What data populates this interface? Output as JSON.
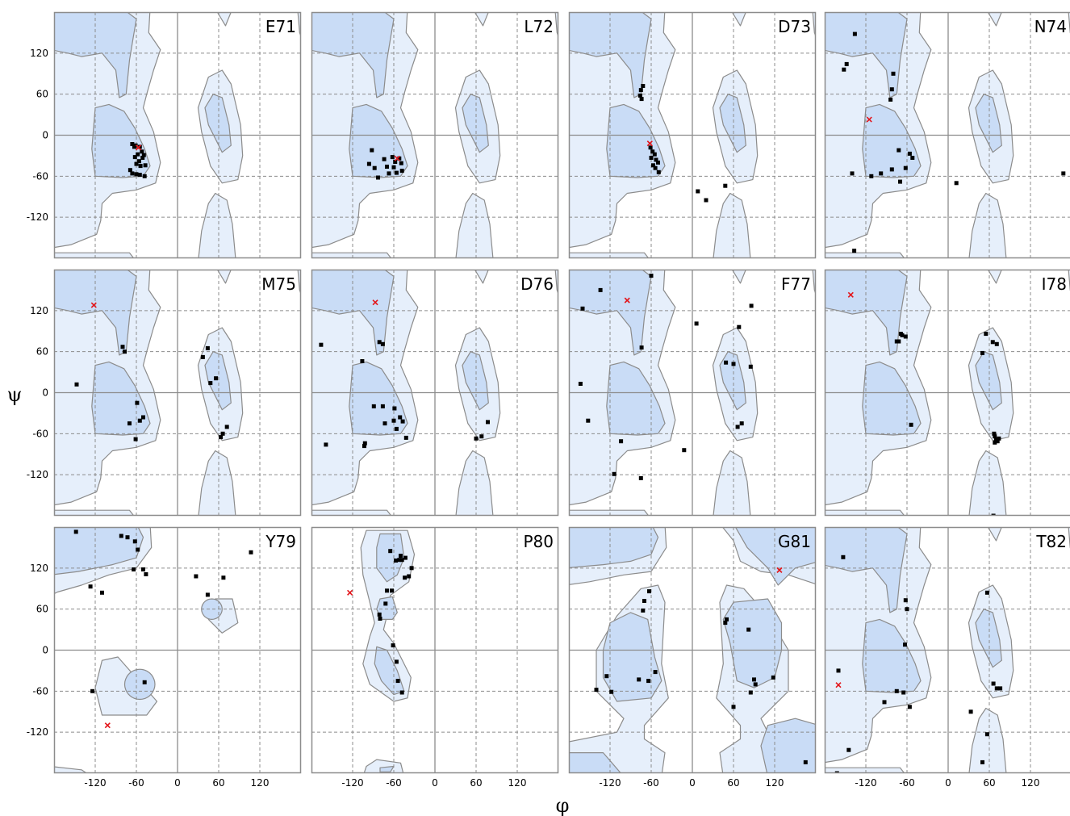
{
  "chart_data": {
    "type": "scatter",
    "xlabel": "φ",
    "ylabel": "ψ",
    "xlim": [
      -180,
      180
    ],
    "ylim": [
      -180,
      180
    ],
    "xticks": [
      -120,
      -60,
      0,
      60,
      120
    ],
    "yticks": [
      120,
      60,
      0,
      -60,
      -120
    ],
    "grid": true,
    "colors": {
      "favored_region": "#c9dcf6",
      "allowed_region": "#e6effb",
      "region_border": "#8c8c8c",
      "point": "#000000",
      "highlight": "#e3161b",
      "frame": "#8c8c8c",
      "grid": "#8c8c8c"
    },
    "panels": [
      {
        "label": "E71",
        "highlight": [
          -57,
          -18
        ],
        "points": [
          [
            -66,
            -13
          ],
          [
            -63,
            -17
          ],
          [
            -61,
            -15
          ],
          [
            -55,
            -17
          ],
          [
            -52,
            -24
          ],
          [
            -58,
            -28
          ],
          [
            -49,
            -29
          ],
          [
            -62,
            -32
          ],
          [
            -51,
            -33
          ],
          [
            -56,
            -38
          ],
          [
            -60,
            -42
          ],
          [
            -54,
            -45
          ],
          [
            -47,
            -44
          ],
          [
            -69,
            -51
          ],
          [
            -66,
            -56
          ],
          [
            -60,
            -57
          ],
          [
            -55,
            -58
          ],
          [
            -48,
            -60
          ]
        ]
      },
      {
        "label": "L72",
        "highlight": [
          -55,
          -34
        ],
        "points": [
          [
            -92,
            -22
          ],
          [
            -96,
            -42
          ],
          [
            -88,
            -48
          ],
          [
            -83,
            -62
          ],
          [
            -74,
            -35
          ],
          [
            -70,
            -46
          ],
          [
            -67,
            -56
          ],
          [
            -62,
            -32
          ],
          [
            -60,
            -47
          ],
          [
            -58,
            -39
          ],
          [
            -52,
            -34
          ],
          [
            -56,
            -55
          ],
          [
            -49,
            -41
          ],
          [
            -48,
            -52
          ]
        ]
      },
      {
        "label": "D73",
        "highlight": [
          -62,
          -12
        ],
        "points": [
          [
            -72,
            72
          ],
          [
            -75,
            66
          ],
          [
            -76,
            58
          ],
          [
            -74,
            53
          ],
          [
            -61,
            -18
          ],
          [
            -58,
            -24
          ],
          [
            -55,
            -28
          ],
          [
            -60,
            -33
          ],
          [
            -53,
            -36
          ],
          [
            -50,
            -40
          ],
          [
            -57,
            -44
          ],
          [
            -54,
            -48
          ],
          [
            -49,
            -54
          ],
          [
            8,
            -82
          ],
          [
            20,
            -95
          ],
          [
            48,
            -74
          ]
        ]
      },
      {
        "label": "N74",
        "highlight": [
          -115,
          23
        ],
        "points": [
          [
            -136,
            148
          ],
          [
            -148,
            104
          ],
          [
            -152,
            96
          ],
          [
            -80,
            90
          ],
          [
            -82,
            67
          ],
          [
            -84,
            52
          ],
          [
            -140,
            -56
          ],
          [
            -112,
            -60
          ],
          [
            -98,
            -56
          ],
          [
            -72,
            -22
          ],
          [
            -82,
            -50
          ],
          [
            -62,
            -48
          ],
          [
            -70,
            -68
          ],
          [
            -56,
            -27
          ],
          [
            -52,
            -33
          ],
          [
            12,
            -70
          ],
          [
            168,
            -56
          ],
          [
            -137,
            -169
          ]
        ]
      },
      {
        "label": "M75",
        "highlight": [
          -122,
          128
        ],
        "points": [
          [
            -80,
            67
          ],
          [
            -77,
            60
          ],
          [
            -147,
            12
          ],
          [
            -70,
            -45
          ],
          [
            -59,
            -15
          ],
          [
            -55,
            -41
          ],
          [
            -50,
            -36
          ],
          [
            -61,
            -68
          ],
          [
            37,
            52
          ],
          [
            44,
            65
          ],
          [
            48,
            14
          ],
          [
            56,
            21
          ],
          [
            63,
            -65
          ],
          [
            66,
            -60
          ],
          [
            72,
            -50
          ]
        ]
      },
      {
        "label": "D76",
        "highlight": [
          -87,
          132
        ],
        "points": [
          [
            -166,
            70
          ],
          [
            -159,
            -76
          ],
          [
            -103,
            -78
          ],
          [
            -102,
            -74
          ],
          [
            -106,
            46
          ],
          [
            -81,
            74
          ],
          [
            -76,
            71
          ],
          [
            -89,
            -20
          ],
          [
            -76,
            -20
          ],
          [
            -73,
            -45
          ],
          [
            -59,
            -23
          ],
          [
            -60,
            -41
          ],
          [
            -56,
            -53
          ],
          [
            -51,
            -36
          ],
          [
            -47,
            -42
          ],
          [
            -42,
            -66
          ],
          [
            60,
            -67
          ],
          [
            68,
            -64
          ],
          [
            77,
            -43
          ]
        ]
      },
      {
        "label": "F77",
        "highlight": [
          -95,
          135
        ],
        "points": [
          [
            -134,
            150
          ],
          [
            -160,
            123
          ],
          [
            -60,
            171
          ],
          [
            -74,
            66
          ],
          [
            -163,
            13
          ],
          [
            -152,
            -41
          ],
          [
            -104,
            -71
          ],
          [
            -114,
            -119
          ],
          [
            -75,
            -125
          ],
          [
            -12,
            -84
          ],
          [
            6,
            101
          ],
          [
            68,
            96
          ],
          [
            86,
            127
          ],
          [
            49,
            44
          ],
          [
            60,
            42
          ],
          [
            85,
            38
          ],
          [
            66,
            -50
          ],
          [
            72,
            -45
          ]
        ]
      },
      {
        "label": "I78",
        "highlight": [
          -142,
          143
        ],
        "points": [
          [
            -69,
            86
          ],
          [
            -67,
            84
          ],
          [
            -75,
            75
          ],
          [
            -72,
            75
          ],
          [
            -62,
            82
          ],
          [
            -54,
            -47
          ],
          [
            55,
            86
          ],
          [
            50,
            58
          ],
          [
            65,
            74
          ],
          [
            71,
            71
          ],
          [
            67,
            -60
          ],
          [
            68,
            -73
          ],
          [
            70,
            -69
          ],
          [
            72,
            -71
          ],
          [
            68,
            -64
          ],
          [
            74,
            -67
          ],
          [
            66,
            -180
          ]
        ]
      },
      {
        "label": "Y79",
        "highlight": [
          -102,
          -110
        ],
        "points": [
          [
            -148,
            173
          ],
          [
            -82,
            167
          ],
          [
            -73,
            165
          ],
          [
            -62,
            159
          ],
          [
            -58,
            147
          ],
          [
            -64,
            118
          ],
          [
            -50,
            118
          ],
          [
            -46,
            111
          ],
          [
            -127,
            93
          ],
          [
            -110,
            84
          ],
          [
            -124,
            -60
          ],
          [
            -48,
            -47
          ],
          [
            27,
            108
          ],
          [
            44,
            81
          ],
          [
            67,
            106
          ],
          [
            107,
            143
          ]
        ]
      },
      {
        "label": "P80",
        "highlight": [
          -124,
          84
        ],
        "points": [
          [
            -65,
            145
          ],
          [
            -57,
            131
          ],
          [
            -50,
            138
          ],
          [
            -52,
            132
          ],
          [
            -48,
            132
          ],
          [
            -43,
            135
          ],
          [
            -44,
            106
          ],
          [
            -34,
            120
          ],
          [
            -38,
            108
          ],
          [
            -70,
            87
          ],
          [
            -63,
            87
          ],
          [
            -72,
            68
          ],
          [
            -81,
            52
          ],
          [
            -80,
            46
          ],
          [
            -61,
            7
          ],
          [
            -56,
            -17
          ],
          [
            -54,
            -45
          ],
          [
            -48,
            -62
          ]
        ]
      },
      {
        "label": "G81",
        "highlight": [
          127,
          117
        ],
        "points": [
          [
            -63,
            86
          ],
          [
            -70,
            72
          ],
          [
            -72,
            58
          ],
          [
            -140,
            -58
          ],
          [
            -125,
            -38
          ],
          [
            -118,
            -61
          ],
          [
            -78,
            -43
          ],
          [
            -64,
            -45
          ],
          [
            -54,
            -32
          ],
          [
            48,
            40
          ],
          [
            50,
            45
          ],
          [
            82,
            30
          ],
          [
            90,
            -43
          ],
          [
            92,
            -50
          ],
          [
            85,
            -62
          ],
          [
            60,
            -83
          ],
          [
            118,
            -40
          ],
          [
            165,
            -164
          ]
        ]
      },
      {
        "label": "T82",
        "highlight": [
          -160,
          -51
        ],
        "points": [
          [
            -153,
            136
          ],
          [
            -62,
            73
          ],
          [
            -60,
            60
          ],
          [
            -63,
            8
          ],
          [
            -160,
            -30
          ],
          [
            -93,
            -76
          ],
          [
            -75,
            -60
          ],
          [
            -65,
            -62
          ],
          [
            -56,
            -83
          ],
          [
            -145,
            -146
          ],
          [
            -162,
            -180
          ],
          [
            33,
            -90
          ],
          [
            57,
            84
          ],
          [
            66,
            -49
          ],
          [
            71,
            -56
          ],
          [
            76,
            -56
          ],
          [
            57,
            -123
          ],
          [
            50,
            -164
          ]
        ]
      }
    ]
  }
}
